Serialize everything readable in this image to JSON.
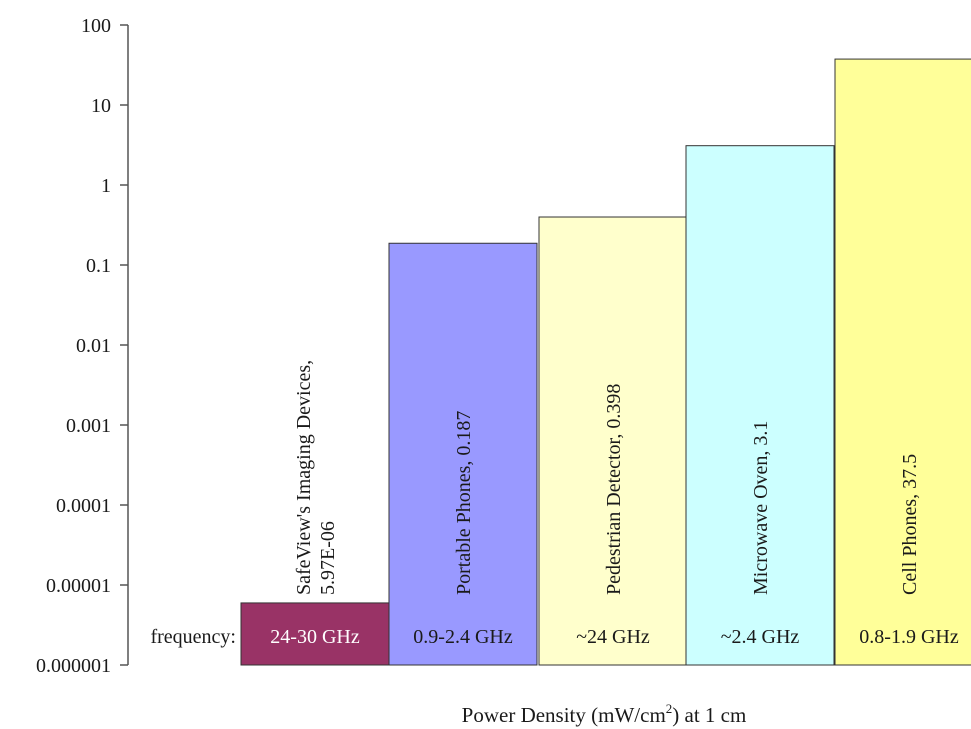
{
  "chart_data": {
    "type": "bar",
    "title": "",
    "xlabel": {
      "prefix": "Power Density (mW/cm",
      "superscript": "2",
      "suffix": ") at 1 cm"
    },
    "ylabel": "",
    "yscale": "log",
    "ylim": [
      1e-06,
      100
    ],
    "y_ticks": [
      100,
      10,
      1,
      0.1,
      0.01,
      0.001,
      0.0001,
      1e-05,
      1e-06
    ],
    "y_tick_labels": [
      "100",
      "10",
      "1",
      "0.1",
      "0.01",
      "0.001",
      "0.0001",
      "0.00001",
      "0.000001"
    ],
    "frequency_row_label": "frequency:",
    "categories": [
      "SafeView's Imaging Devices",
      "Portable Phones",
      "Pedestrian Detector",
      "Microwave Oven",
      "Cell Phones"
    ],
    "values": [
      5.97e-06,
      0.187,
      0.398,
      3.1,
      37.5
    ],
    "bar_labels": [
      [
        "SafeView's Imaging Devices,",
        "5.97E-06"
      ],
      [
        "Portable Phones, 0.187"
      ],
      [
        "Pedestrian Detector, 0.398"
      ],
      [
        "Microwave Oven, 3.1"
      ],
      [
        "Cell Phones, 37.5"
      ]
    ],
    "frequencies": [
      "24-30 GHz",
      "0.9-2.4 GHz",
      "~24 GHz",
      "~2.4 GHz",
      "0.8-1.9 GHz"
    ],
    "colors": [
      "#993366",
      "#9999ff",
      "#ffffcc",
      "#ccffff",
      "#ffff99"
    ],
    "frequency_text_colors": [
      "#ffffff",
      "#1a1a1a",
      "#1a1a1a",
      "#1a1a1a",
      "#1a1a1a"
    ],
    "grid": false,
    "legend": "none"
  }
}
